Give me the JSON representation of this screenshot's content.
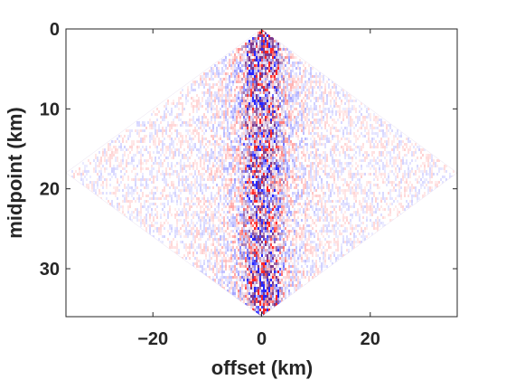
{
  "chart_data": {
    "type": "heatmap",
    "title": "",
    "xlabel": "offset (km)",
    "ylabel": "midpoint (km)",
    "xlim": [
      -36,
      36
    ],
    "ylim": [
      0,
      36
    ],
    "y_reversed": true,
    "x_ticks": [
      -20,
      0,
      20
    ],
    "x_tick_labels": [
      "−20",
      "0",
      "20"
    ],
    "y_ticks": [
      0,
      10,
      20,
      30
    ],
    "y_tick_labels": [
      "0",
      "10",
      "20",
      "30"
    ],
    "grid": false,
    "colormap": {
      "negative": "#0000ff",
      "zero": "#ffffff",
      "positive": "#ff0000"
    },
    "support_region": {
      "shape": "diamond",
      "vertices": [
        {
          "offset": 0,
          "midpoint": 0
        },
        {
          "offset": 36,
          "midpoint": 18
        },
        {
          "offset": 0,
          "midpoint": 36
        },
        {
          "offset": -36,
          "midpoint": 18
        }
      ]
    },
    "description_of_field": "seismic amplitudes, strongest energy concentrated near zero offset along the full midpoint range"
  }
}
